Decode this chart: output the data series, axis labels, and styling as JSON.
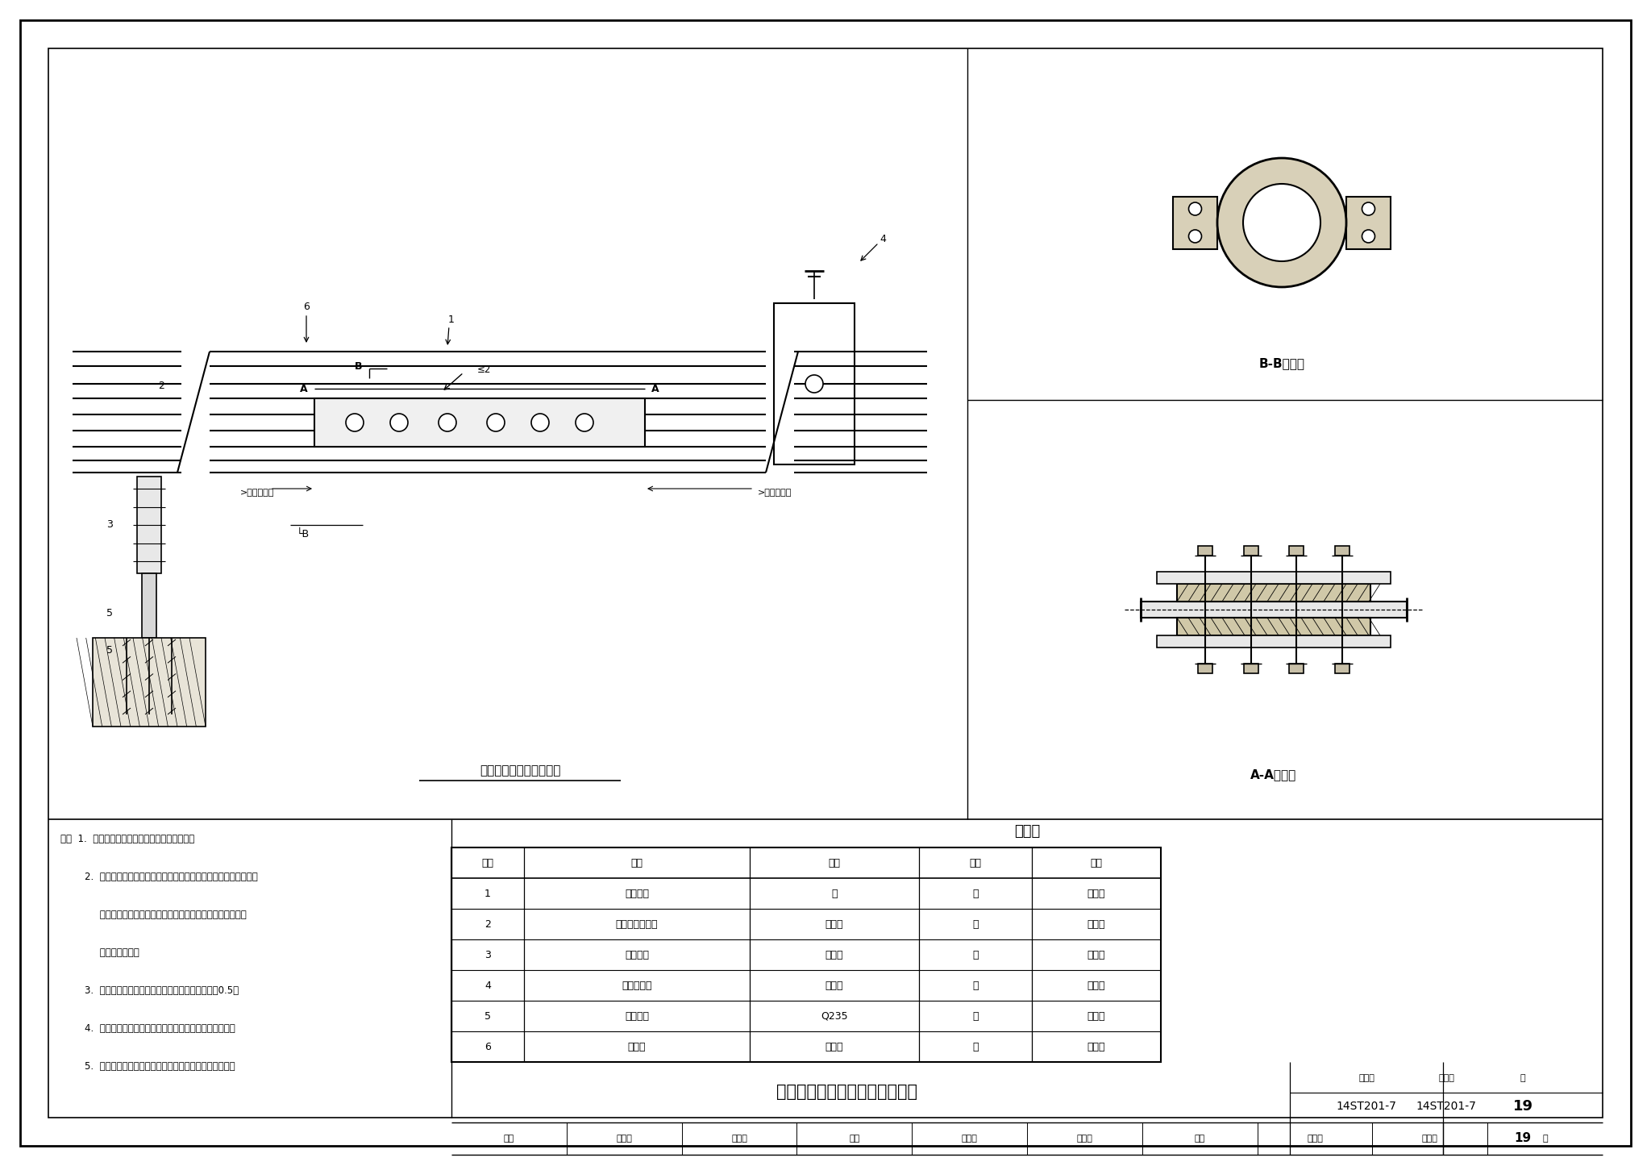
{
  "page_bg": "#ffffff",
  "lc": "#000000",
  "drawing_title1": "接触轨中间接头正立面图",
  "drawing_title2": "B-B剑面图",
  "drawing_title3": "A-A剑面图",
  "material_table_title": "材料表",
  "table_headers": [
    "序号",
    "名称",
    "材质",
    "单位",
    "数量"
  ],
  "table_rows": [
    [
      "1",
      "中间接头",
      "铝",
      "套",
      "按设计"
    ],
    [
      "2",
      "钓铝复合接触轨",
      "钓、铝",
      "套",
      "按设计"
    ],
    [
      "3",
      "绵缘支撑",
      "玻璃钓",
      "套",
      "按设计"
    ],
    [
      "4",
      "防护罩支架",
      "玻璃钓",
      "套",
      "按设计"
    ],
    [
      "5",
      "螺纹逊钉",
      "Q235",
      "套",
      "按设计"
    ],
    [
      "6",
      "防护罩",
      "玻璃钓",
      "套",
      "按设计"
    ]
  ],
  "notes_line1": "注：  1.  本图适用于接触轨连接时中间接头安装。",
  "notes_line2": "        2.  中间接头与接触轨相连接的接触面均应清洁，并应涂导电油脂。",
  "notes_line3": "             中间接头与接触轨膨连接密贴，紧固件安装齐全，紧固力矩",
  "notes_line4": "             符合设计要求。",
  "notes_line5": "        3.  接触轨接头处流面连接应平顺，高度误差不小于0.5。",
  "notes_line6": "        4.  中间接头端面相邻的绵缘支撑的距离符合设计给定局。",
  "notes_line7": "        5.  安装中不允许用锤击或顶压等冲击性外力使零件就位。",
  "main_title": "上接触式接触轨中间接头安装图",
  "atlas_label": "图集号",
  "atlas_no": "14ST201-7",
  "page_label": "页",
  "page_no": "19",
  "sig_row": [
    "审核",
    "董义飞",
    "高山山",
    "校对",
    "泰志刚",
    "蔡志川",
    "设计",
    "孙欢欢",
    "申双双",
    "页"
  ]
}
